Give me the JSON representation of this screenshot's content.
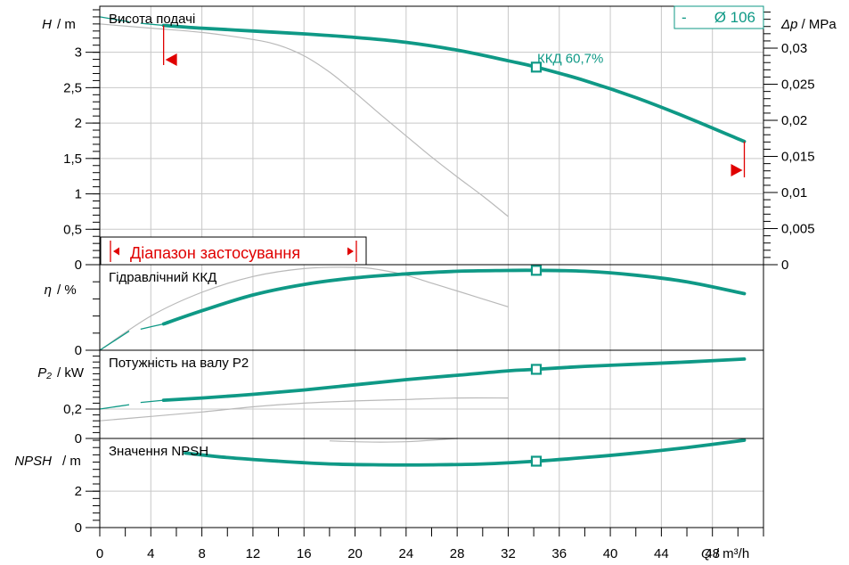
{
  "chart_data": {
    "type": "line",
    "colors": {
      "main": "#0f9986",
      "thin": "#b9b9b9",
      "range": "#e00000",
      "frame": "#000000"
    },
    "x_axis": {
      "label_var": "Q",
      "label_unit": "/ m³/h",
      "range": [
        0,
        52
      ],
      "ticks": [
        "0",
        "4",
        "8",
        "12",
        "16",
        "20",
        "24",
        "28",
        "32",
        "36",
        "40",
        "44",
        "48"
      ],
      "tick_values": [
        0,
        4,
        8,
        12,
        16,
        20,
        24,
        28,
        32,
        36,
        40,
        44,
        48
      ]
    },
    "diameter": {
      "dash": "-",
      "label": "Ø 106"
    },
    "operating_point_q": 34.2,
    "application_range": {
      "label": "Діапазон застосування",
      "q_min": 5,
      "q_max": 50.5
    },
    "panels": [
      {
        "id": "head",
        "label": "Висота подачі",
        "ylabel_var": "H",
        "ylabel_unit": "/ m",
        "ylim": [
          0,
          3.65
        ],
        "ticks": [
          "0",
          "0,5",
          "1",
          "1,5",
          "2",
          "2,5",
          "3"
        ],
        "tick_values": [
          0,
          0.5,
          1,
          1.5,
          2,
          2.5,
          3
        ],
        "right_axis": {
          "label_var": "Δp",
          "label_unit": "/ MPa",
          "ticks": [
            "0",
            "0,005",
            "0,01",
            "0,015",
            "0,02",
            "0,025",
            "0,03"
          ],
          "tick_values": [
            0,
            0.005,
            0.01,
            0.015,
            0.02,
            0.025,
            0.03
          ],
          "factor": 0.00981
        },
        "efficiency_label": "ККД  60,7%",
        "series": [
          {
            "role": "main",
            "x": [
              5,
              8,
              12,
              16,
              20,
              24,
              28,
              32,
              34.2,
              38,
              42,
              46,
              50.5
            ],
            "y": [
              3.38,
              3.34,
              3.3,
              3.26,
              3.21,
              3.14,
              3.03,
              2.88,
              2.79,
              2.6,
              2.36,
              2.08,
              1.74
            ]
          },
          {
            "role": "main-ext",
            "x": [
              0,
              2.3,
              3.2,
              5
            ],
            "y": [
              3.5,
              3.43,
              3.41,
              3.38
            ]
          },
          {
            "role": "thin",
            "x": [
              0,
              4,
              8,
              12,
              14,
              16,
              18,
              20,
              22,
              24,
              26,
              28,
              30,
              32
            ],
            "y": [
              3.4,
              3.34,
              3.28,
              3.18,
              3.1,
              2.95,
              2.72,
              2.43,
              2.12,
              1.82,
              1.52,
              1.24,
              0.97,
              0.68
            ]
          }
        ]
      },
      {
        "id": "eff",
        "label": "Гідравлічний ККД",
        "ylabel_var": "η",
        "ylabel_unit": "/ %",
        "ylim": [
          0,
          65
        ],
        "ticks": [
          "0"
        ],
        "tick_values": [
          0
        ],
        "series": [
          {
            "role": "main",
            "x": [
              5,
              8,
              12,
              16,
              20,
              24,
              28,
              32,
              34.2,
              38,
              42,
              46,
              50.5
            ],
            "y": [
              20,
              30,
              42,
              50,
              55,
              58,
              60,
              60.6,
              60.7,
              60,
              57,
              52,
              43
            ]
          },
          {
            "role": "main-ext",
            "x": [
              0,
              2.3,
              3.2,
              5
            ],
            "y": [
              0,
              14.5,
              16,
              20
            ]
          },
          {
            "role": "thin",
            "x": [
              0,
              4,
              8,
              12,
              16,
              20,
              22,
              24,
              26,
              28,
              30,
              32
            ],
            "y": [
              0,
              26,
              44,
              56,
              62,
              63,
              61,
              57,
              51,
              45,
              39,
              33
            ]
          }
        ]
      },
      {
        "id": "power",
        "label": "Потужність на валу P2",
        "ylabel_var": "P₂",
        "ylabel_unit": "/ kW",
        "ylim": [
          0,
          0.6
        ],
        "ticks": [
          "0",
          "0,2"
        ],
        "tick_values": [
          0,
          0.2
        ],
        "series": [
          {
            "role": "main",
            "x": [
              5,
              8,
              12,
              16,
              20,
              24,
              28,
              32,
              34.2,
              38,
              42,
              46,
              50.5
            ],
            "y": [
              0.26,
              0.275,
              0.3,
              0.33,
              0.365,
              0.4,
              0.43,
              0.46,
              0.47,
              0.49,
              0.505,
              0.52,
              0.54
            ]
          },
          {
            "role": "main-ext",
            "x": [
              0,
              2.3,
              3.2,
              5
            ],
            "y": [
              0.2,
              0.23,
              0.245,
              0.26
            ]
          },
          {
            "role": "thin",
            "x": [
              0,
              4,
              8,
              12,
              16,
              20,
              24,
              28,
              32
            ],
            "y": [
              0.12,
              0.15,
              0.18,
              0.215,
              0.24,
              0.255,
              0.265,
              0.275,
              0.275
            ]
          }
        ]
      },
      {
        "id": "npsh",
        "label": "Значення NPSH",
        "ylabel_var": "NPSH",
        "ylabel_unit": "/ m",
        "ylim": [
          0,
          4.9
        ],
        "ticks": [
          "0",
          "2"
        ],
        "tick_values": [
          0,
          2
        ],
        "series": [
          {
            "role": "main",
            "x": [
              6.7,
              10,
              14,
              18,
              22,
              26,
              30,
              34.2,
              38,
              42,
              46,
              50.5
            ],
            "y": [
              4.1,
              3.85,
              3.65,
              3.5,
              3.45,
              3.45,
              3.5,
              3.65,
              3.85,
              4.1,
              4.4,
              4.8
            ]
          },
          {
            "role": "thin",
            "x": [
              18,
              20,
              22,
              24,
              26,
              28
            ],
            "y": [
              4.77,
              4.72,
              4.7,
              4.72,
              4.8,
              4.9
            ]
          }
        ]
      }
    ]
  }
}
